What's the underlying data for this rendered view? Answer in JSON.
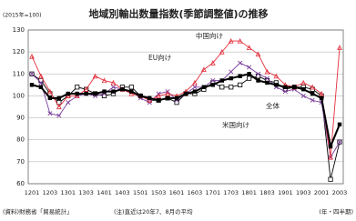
{
  "chart_data": {
    "type": "line",
    "title": "地域別輸出数量指数(季節調整値)の推移",
    "unit": "(2015年=100)",
    "source": "(資料)財務省「貿易統計」",
    "note": "(注)直近は20年7、8月の平均",
    "x_label": "(年・四半期)",
    "categories": [
      "1201",
      null,
      "1203",
      null,
      "1301",
      null,
      "1303",
      null,
      "1401",
      null,
      "1403",
      null,
      "1501",
      null,
      "1503",
      null,
      "1601",
      null,
      "1603",
      null,
      "1701",
      null,
      "1703",
      null,
      "1801",
      null,
      "1803",
      null,
      "1901",
      null,
      "1903",
      null,
      "2001",
      null,
      "2003"
    ],
    "ylim": [
      60,
      130
    ],
    "yticks": [
      60,
      70,
      80,
      90,
      100,
      110,
      120,
      130
    ],
    "grid": true,
    "series": [
      {
        "name": "全体",
        "color": "#000000",
        "marker": "filled-square",
        "values": [
          105,
          104,
          99,
          99,
          101,
          101,
          101,
          101,
          102,
          102,
          103,
          102,
          100,
          99,
          98,
          99,
          99,
          101,
          102,
          104,
          105,
          107,
          108,
          109,
          110,
          107,
          106,
          105,
          104,
          104,
          103,
          101,
          99,
          77,
          87
        ]
      },
      {
        "name": "米国向け",
        "color": "#000000",
        "marker": "open-square",
        "values": [
          110,
          107,
          101,
          97,
          100,
          104,
          103,
          101,
          100,
          101,
          104,
          104,
          100,
          98,
          98,
          99,
          97,
          101,
          101,
          103,
          106,
          104,
          104,
          105,
          108,
          109,
          107,
          106,
          103,
          104,
          104,
          103,
          100,
          62,
          79
        ]
      },
      {
        "name": "中国向け",
        "color": "#e3303c",
        "marker": "triangle",
        "values": [
          118,
          109,
          102,
          95,
          100,
          100,
          103,
          109,
          107,
          106,
          103,
          101,
          100,
          98,
          100,
          101,
          100,
          102,
          106,
          112,
          115,
          120,
          125,
          125,
          122,
          119,
          111,
          109,
          105,
          104,
          106,
          104,
          101,
          72,
          122
        ]
      },
      {
        "name": "EU向け",
        "color": "#7b3d9c",
        "marker": "cross",
        "values": [
          110,
          106,
          92,
          91,
          97,
          100,
          101,
          100,
          101,
          104,
          103,
          102,
          99,
          97,
          101,
          102,
          98,
          101,
          104,
          104,
          107,
          107,
          111,
          115,
          113,
          110,
          108,
          104,
          102,
          103,
          100,
          98,
          97,
          72,
          79
        ]
      }
    ]
  }
}
